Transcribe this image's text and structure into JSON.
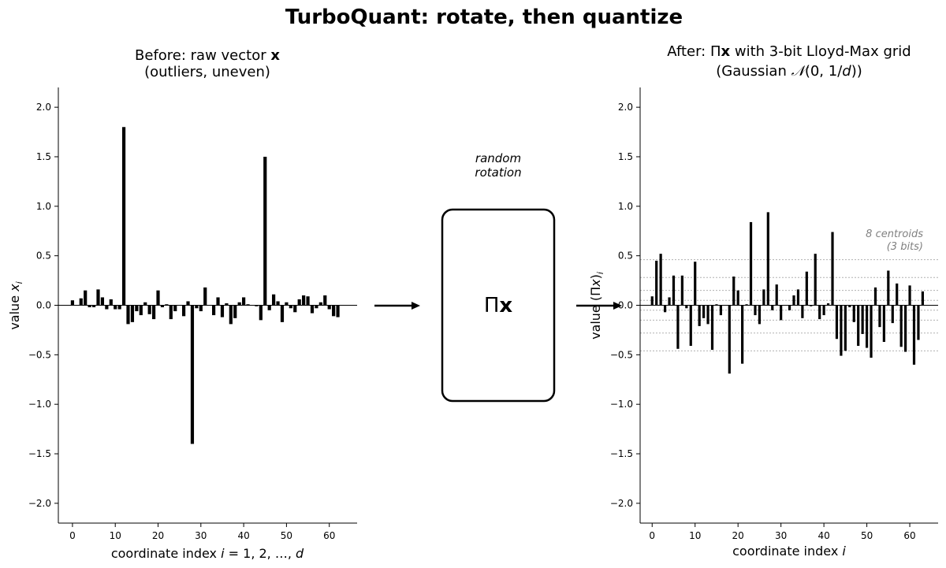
{
  "title": "TurboQuant: rotate, then quantize",
  "chart_data": [
    {
      "type": "bar",
      "title_line1": "Before: raw vector x",
      "title_line2": "(outliers, uneven)",
      "xlabel": "coordinate index  i = 1, 2, …, d",
      "ylabel": "value  x_i",
      "xlim": [
        -3.3,
        66.5
      ],
      "ylim": [
        -2.2,
        2.2
      ],
      "xticks": [
        0,
        10,
        20,
        30,
        40,
        50,
        60
      ],
      "yticks": [
        -2.0,
        -1.5,
        -1.0,
        -0.5,
        0.0,
        0.5,
        1.0,
        1.5,
        2.0
      ],
      "x": [
        0,
        1,
        2,
        3,
        4,
        5,
        6,
        7,
        8,
        9,
        10,
        11,
        12,
        13,
        14,
        15,
        16,
        17,
        18,
        19,
        20,
        21,
        22,
        23,
        24,
        25,
        26,
        27,
        28,
        29,
        30,
        31,
        32,
        33,
        34,
        35,
        36,
        37,
        38,
        39,
        40,
        41,
        42,
        43,
        44,
        45,
        46,
        47,
        48,
        49,
        50,
        51,
        52,
        53,
        54,
        55,
        56,
        57,
        58,
        59,
        60,
        61,
        62,
        63
      ],
      "values": [
        0.05,
        0.0,
        0.07,
        0.15,
        -0.02,
        -0.02,
        0.16,
        0.08,
        -0.04,
        0.06,
        -0.04,
        -0.04,
        1.8,
        -0.19,
        -0.17,
        -0.06,
        -0.1,
        0.03,
        -0.09,
        -0.14,
        0.15,
        -0.02,
        0.01,
        -0.14,
        -0.06,
        0.0,
        -0.11,
        0.04,
        -1.4,
        -0.03,
        -0.06,
        0.18,
        0.0,
        -0.1,
        0.08,
        -0.12,
        0.02,
        -0.19,
        -0.13,
        0.03,
        0.08,
        0.01,
        0.0,
        -0.01,
        -0.15,
        1.5,
        -0.05,
        0.11,
        0.04,
        -0.17,
        0.03,
        -0.03,
        -0.07,
        0.06,
        0.1,
        0.09,
        -0.08,
        -0.03,
        0.03,
        0.1,
        -0.04,
        -0.11,
        -0.12,
        0.0
      ]
    },
    {
      "type": "bar",
      "title_line1": "After: Πx with 3-bit Lloyd-Max grid",
      "title_line2": "(Gaussian 𝒩(0, 1/d))",
      "xlabel": "coordinate index  i",
      "ylabel": "value  (Πx)_i",
      "xlim": [
        -2.8,
        66.6
      ],
      "ylim": [
        -2.2,
        2.2
      ],
      "xticks": [
        0,
        10,
        20,
        30,
        40,
        50,
        60
      ],
      "yticks": [
        -2.0,
        -1.5,
        -1.0,
        -0.5,
        0.0,
        0.5,
        1.0,
        1.5,
        2.0
      ],
      "centroids": [
        -0.46,
        -0.28,
        -0.15,
        -0.05,
        0.05,
        0.15,
        0.28,
        0.46
      ],
      "centroid_note_line1": "8 centroids",
      "centroid_note_line2": "(3 bits)",
      "x": [
        0,
        1,
        2,
        3,
        4,
        5,
        6,
        7,
        8,
        9,
        10,
        11,
        12,
        13,
        14,
        15,
        16,
        17,
        18,
        19,
        20,
        21,
        22,
        23,
        24,
        25,
        26,
        27,
        28,
        29,
        30,
        31,
        32,
        33,
        34,
        35,
        36,
        37,
        38,
        39,
        40,
        41,
        42,
        43,
        44,
        45,
        46,
        47,
        48,
        49,
        50,
        51,
        52,
        53,
        54,
        55,
        56,
        57,
        58,
        59,
        60,
        61,
        62,
        63
      ],
      "values": [
        0.09,
        0.45,
        0.52,
        -0.07,
        0.08,
        0.3,
        -0.44,
        0.3,
        -0.03,
        -0.41,
        0.44,
        -0.21,
        -0.13,
        -0.19,
        -0.45,
        0.01,
        -0.1,
        0.0,
        -0.69,
        0.29,
        0.15,
        -0.59,
        0.01,
        0.84,
        -0.1,
        -0.19,
        0.16,
        0.94,
        -0.05,
        0.21,
        -0.15,
        0.0,
        -0.05,
        0.1,
        0.16,
        -0.13,
        0.34,
        -0.01,
        0.52,
        -0.14,
        -0.1,
        0.02,
        0.74,
        -0.34,
        -0.51,
        -0.46,
        -0.02,
        -0.17,
        -0.41,
        -0.29,
        -0.43,
        -0.53,
        0.18,
        -0.22,
        -0.37,
        0.35,
        -0.18,
        0.22,
        -0.42,
        -0.47,
        0.2,
        -0.6,
        -0.35,
        0.14
      ]
    }
  ],
  "middle": {
    "rotation_label_line1": "random",
    "rotation_label_line2": "rotation",
    "box_label": "Πx"
  }
}
